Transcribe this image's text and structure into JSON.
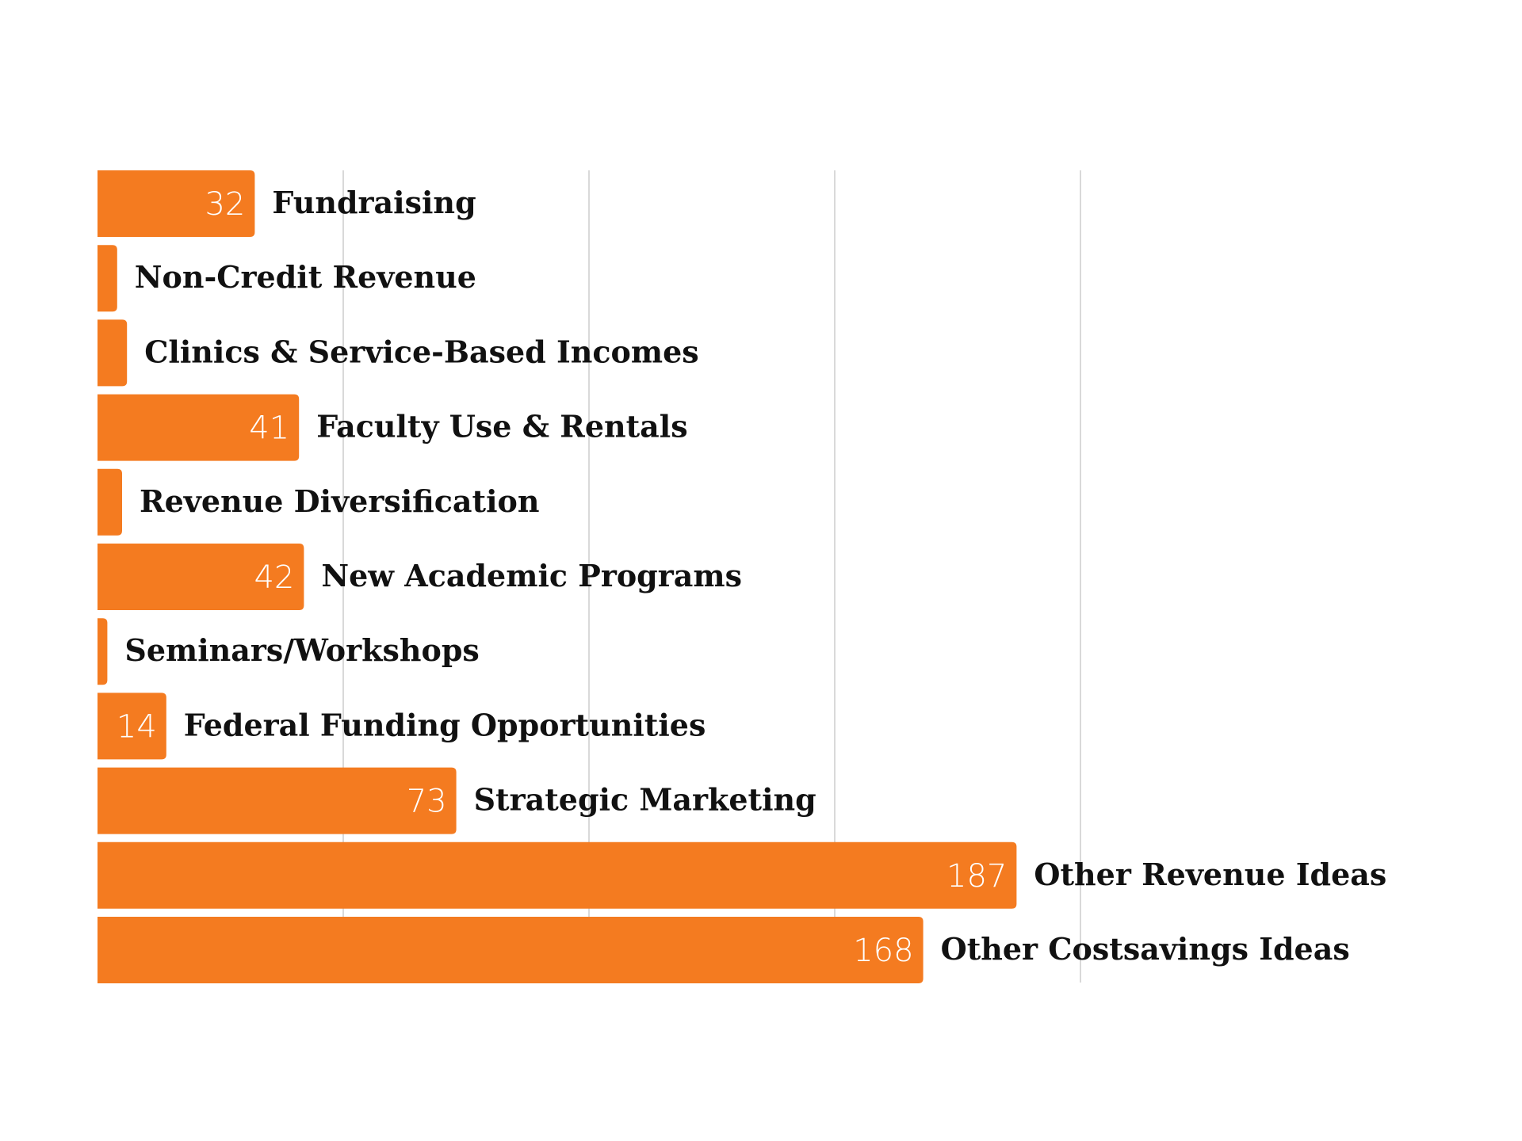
{
  "chart_data": {
    "type": "bar",
    "orientation": "horizontal",
    "title": "",
    "xlabel": "",
    "ylabel": "",
    "categories": [
      "Fundraising",
      "Non-Credit Revenue",
      "Clinics & Service-Based Incomes",
      "Faculty Use & Rentals",
      "Revenue Diversification",
      "New Academic Programs",
      "Seminars/Workshops",
      "Federal Funding Opportunities",
      "Strategic Marketing",
      "Other Revenue Ideas",
      "Other Costsavings Ideas"
    ],
    "values": [
      32,
      4,
      6,
      41,
      5,
      42,
      2,
      14,
      73,
      187,
      168
    ],
    "value_labels": [
      "32",
      "",
      "",
      "41",
      "",
      "42",
      "",
      "14",
      "73",
      "187",
      "168"
    ],
    "xlim": [
      0,
      250
    ],
    "grid": true,
    "gridlines_x": [
      0,
      50,
      100,
      150,
      200
    ],
    "legend": "none",
    "bar_color": "#f47b20",
    "value_label_color": "#ffffff",
    "category_label_color": "#111111",
    "grid_color": "#d9d9d9"
  }
}
